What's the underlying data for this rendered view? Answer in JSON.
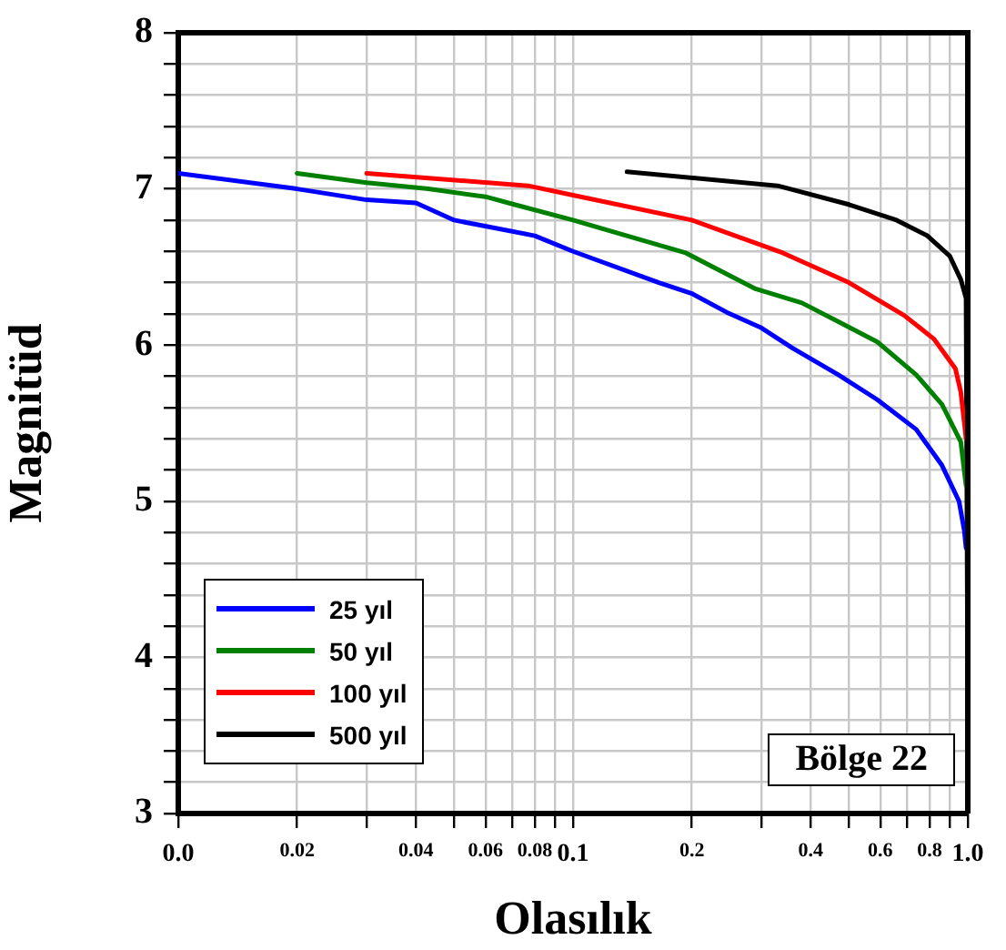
{
  "chart_data": {
    "type": "line",
    "xlabel": "Olasılık",
    "ylabel": "Magnitüd",
    "log": "x",
    "grid": true,
    "legend": "bottom left",
    "marker": "none",
    "line_style": "solid",
    "xlim": [
      0.01,
      1
    ],
    "xticks": [
      {
        "value": 0.01,
        "label": "0.0"
      },
      0.02,
      {
        "value": 0.03,
        "label": null
      },
      0.04,
      {
        "value": 0.05,
        "label": null
      },
      0.06,
      {
        "value": 0.07,
        "label": null
      },
      0.08,
      {
        "value": 0.09,
        "label": null
      },
      0.1,
      0.2,
      {
        "value": 0.3,
        "label": null
      },
      0.4,
      {
        "value": 0.5,
        "label": null
      },
      0.6,
      {
        "value": 0.7,
        "label": null
      },
      0.8,
      {
        "value": 0.9,
        "label": null
      },
      {
        "value": 1,
        "label": "1.0"
      }
    ],
    "ylim": [
      3,
      8
    ],
    "yticks": [
      3,
      {
        "value": 3.2,
        "label": null
      },
      {
        "value": 3.4,
        "label": null
      },
      {
        "value": 3.6,
        "label": null
      },
      {
        "value": 3.8,
        "label": null
      },
      4,
      {
        "value": 4.2,
        "label": null
      },
      {
        "value": 4.4,
        "label": null
      },
      {
        "value": 4.6,
        "label": null
      },
      {
        "value": 4.8,
        "label": null
      },
      5,
      {
        "value": 5.2,
        "label": null
      },
      {
        "value": 5.4,
        "label": null
      },
      {
        "value": 5.6,
        "label": null
      },
      {
        "value": 5.8,
        "label": null
      },
      6,
      {
        "value": 6.2,
        "label": null
      },
      {
        "value": 6.4,
        "label": null
      },
      {
        "value": 6.6,
        "label": null
      },
      {
        "value": 6.8,
        "label": null
      },
      7,
      {
        "value": 7.2,
        "label": null
      },
      {
        "value": 7.4,
        "label": null
      },
      {
        "value": 7.6,
        "label": null
      },
      {
        "value": 7.8,
        "label": null
      },
      8
    ],
    "annotations": [
      "Bölge 22"
    ],
    "series": [
      {
        "name": "25 yıl",
        "color": "#0000ff",
        "x": [
          0.01,
          0.02,
          0.03,
          0.04,
          0.05,
          0.08,
          0.1,
          0.165,
          0.2,
          0.245,
          0.3,
          0.36,
          0.47,
          0.59,
          0.74,
          0.86,
          0.95,
          0.98,
          0.99
        ],
        "values": [
          7.1,
          7.0,
          6.93,
          6.91,
          6.8,
          6.7,
          6.6,
          6.4,
          6.33,
          6.21,
          6.11,
          5.98,
          5.81,
          5.65,
          5.46,
          5.23,
          5.0,
          4.81,
          4.7
        ]
      },
      {
        "name": "50 yıl",
        "color": "#008000",
        "x": [
          0.02,
          0.03,
          0.043,
          0.06,
          0.071,
          0.1,
          0.193,
          0.29,
          0.38,
          0.47,
          0.59,
          0.74,
          0.86,
          0.96,
          0.98,
          0.99
        ],
        "values": [
          7.1,
          7.04,
          7.0,
          6.95,
          6.9,
          6.8,
          6.59,
          6.36,
          6.27,
          6.15,
          6.02,
          5.81,
          5.62,
          5.38,
          5.19,
          5.1
        ]
      },
      {
        "name": "100 yıl",
        "color": "#ff0000",
        "x": [
          0.03,
          0.077,
          0.1,
          0.2,
          0.34,
          0.5,
          0.69,
          0.82,
          0.93,
          0.96,
          0.98,
          0.99
        ],
        "values": [
          7.1,
          7.02,
          6.96,
          6.8,
          6.59,
          6.4,
          6.19,
          6.04,
          5.85,
          5.7,
          5.5,
          5.4
        ]
      },
      {
        "name": "500 yıl",
        "color": "#000000",
        "x": [
          0.137,
          0.33,
          0.5,
          0.66,
          0.79,
          0.9,
          0.96,
          0.99,
          1.0
        ],
        "values": [
          7.11,
          7.02,
          6.9,
          6.8,
          6.7,
          6.57,
          6.42,
          6.3,
          3.6
        ]
      }
    ]
  }
}
